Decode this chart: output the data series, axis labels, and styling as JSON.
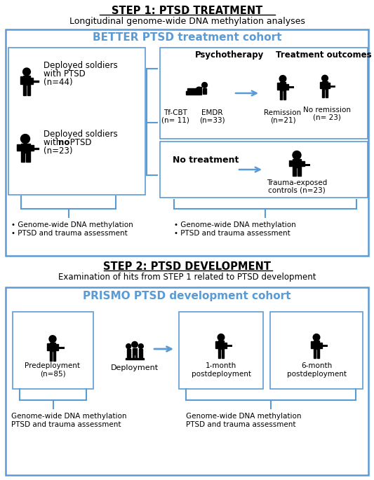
{
  "step1_title": "STEP 1: PTSD TREATMENT",
  "step1_subtitle": "Longitudinal genome-wide DNA methylation analyses",
  "better_cohort_title": "BETTER PTSD treatment cohort",
  "step2_title": "STEP 2: PTSD DEVELOPMENT",
  "step2_subtitle": "Examination of hits from STEP 1 related to PTSD development",
  "prismo_cohort_title": "PRISMO PTSD development cohort",
  "blue": "#5B9BD5",
  "black": "#000000",
  "white": "#FFFFFF",
  "bullet": "•"
}
